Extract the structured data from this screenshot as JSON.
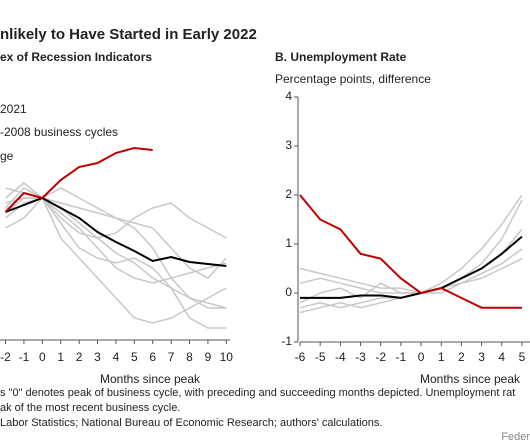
{
  "header": "nlikely to Have Started in Early 2022",
  "chart_data": [
    {
      "type": "line",
      "title": "ex of Recession Indicators",
      "xlabel": "Months since peak",
      "legend": [
        "2021",
        "-2008 business cycles",
        "ge"
      ],
      "x": [
        -2,
        -1,
        0,
        1,
        2,
        3,
        4,
        5,
        6,
        7,
        8,
        9,
        10
      ],
      "xlim": [
        -2.3,
        10.2
      ],
      "xticks": [
        -2,
        -1,
        0,
        1,
        2,
        3,
        4,
        5,
        6,
        7,
        8,
        9,
        10
      ],
      "ylim": [
        86,
        106
      ],
      "series": [
        {
          "color": "#c8c8c8",
          "values": [
            98,
            99.5,
            100,
            98.5,
            97,
            95,
            93,
            92,
            91.5,
            92,
            92.5,
            93,
            93.5
          ]
        },
        {
          "color": "#c8c8c8",
          "values": [
            99,
            101,
            100,
            101,
            100,
            99,
            98,
            97,
            95,
            92,
            90,
            89.5,
            89
          ]
        },
        {
          "color": "#c8c8c8",
          "values": [
            101,
            100.5,
            100,
            96,
            94,
            92,
            90,
            88,
            87.5,
            88,
            89,
            90,
            91
          ]
        },
        {
          "color": "#c8c8c8",
          "values": [
            97,
            98,
            100,
            99.5,
            99,
            98.5,
            98,
            97.5,
            97,
            95,
            93,
            92,
            94
          ]
        },
        {
          "color": "#c8c8c8",
          "values": [
            100,
            101.5,
            100,
            99,
            97.5,
            96,
            94.5,
            93.5,
            92,
            91,
            90,
            89,
            89
          ]
        },
        {
          "color": "#c8c8c8",
          "values": [
            99.5,
            100,
            100,
            98,
            96.5,
            96,
            96.5,
            98,
            99,
            99.5,
            98,
            97,
            96
          ]
        },
        {
          "color": "#c8c8c8",
          "values": [
            98.5,
            100,
            100,
            97.5,
            95,
            94,
            93.5,
            94,
            93,
            91,
            88,
            87,
            87
          ]
        },
        {
          "color": "#000000",
          "values": [
            98.6,
            99.3,
            100,
            99,
            98,
            96.6,
            95.6,
            94.7,
            93.7,
            94.1,
            93.6,
            93.4,
            93.2
          ]
        },
        {
          "color": "#c00000",
          "values": [
            98.6,
            100.5,
            100,
            101.8,
            103.1,
            103.5,
            104.5,
            105,
            104.8,
            null,
            null,
            null,
            null
          ]
        }
      ]
    },
    {
      "type": "line",
      "title": "B. Unemployment Rate",
      "ylabel": "Percentage points, difference",
      "xlabel": "Months since peak",
      "x": [
        -6,
        -5,
        -4,
        -3,
        -2,
        -1,
        0,
        1,
        2,
        3,
        4,
        5
      ],
      "xlim": [
        -6,
        5.4
      ],
      "xticks": [
        -6,
        -5,
        -4,
        -3,
        -2,
        -1,
        0,
        1,
        2,
        3,
        4,
        5
      ],
      "ylim": [
        -1,
        4
      ],
      "yticks": [
        -1,
        0,
        1,
        2,
        3,
        4
      ],
      "series": [
        {
          "color": "#c8c8c8",
          "values": [
            -0.3,
            -0.2,
            -0.3,
            -0.2,
            -0.1,
            -0.1,
            0,
            0.2,
            0.5,
            0.9,
            1.4,
            2.0
          ]
        },
        {
          "color": "#c8c8c8",
          "values": [
            0.5,
            0.4,
            0.3,
            0.2,
            0.1,
            0.1,
            0,
            0.1,
            0.3,
            0.6,
            1.1,
            1.9
          ]
        },
        {
          "color": "#c8c8c8",
          "values": [
            -0.2,
            0,
            0.1,
            -0.1,
            0.2,
            0,
            0,
            0.1,
            0.2,
            0.4,
            0.6,
            0.9
          ]
        },
        {
          "color": "#c8c8c8",
          "values": [
            0.2,
            0.3,
            0.2,
            0.1,
            0,
            0,
            0,
            0,
            0.2,
            0.3,
            0.5,
            0.7
          ]
        },
        {
          "color": "#c8c8c8",
          "values": [
            -0.4,
            -0.3,
            -0.2,
            -0.3,
            -0.2,
            -0.1,
            0,
            0.1,
            0.3,
            0.5,
            0.8,
            1.3
          ]
        },
        {
          "color": "#000000",
          "values": [
            -0.1,
            -0.1,
            -0.1,
            -0.05,
            -0.05,
            -0.1,
            0,
            0.1,
            0.3,
            0.5,
            0.8,
            1.15
          ]
        },
        {
          "color": "#c00000",
          "values": [
            2,
            1.5,
            1.3,
            0.8,
            0.7,
            0.3,
            0,
            0.1,
            -0.1,
            -0.3,
            -0.3,
            -0.3
          ]
        }
      ]
    }
  ],
  "notes": [
    "s \"0\" denotes peak of business cycle, with preceding and succeeding months depicted. Unemployment rat",
    "ak of the most recent business cycle.",
    "Labor Statistics; National Bureau of Economic Research; authors' calculations."
  ],
  "source": "Feder"
}
